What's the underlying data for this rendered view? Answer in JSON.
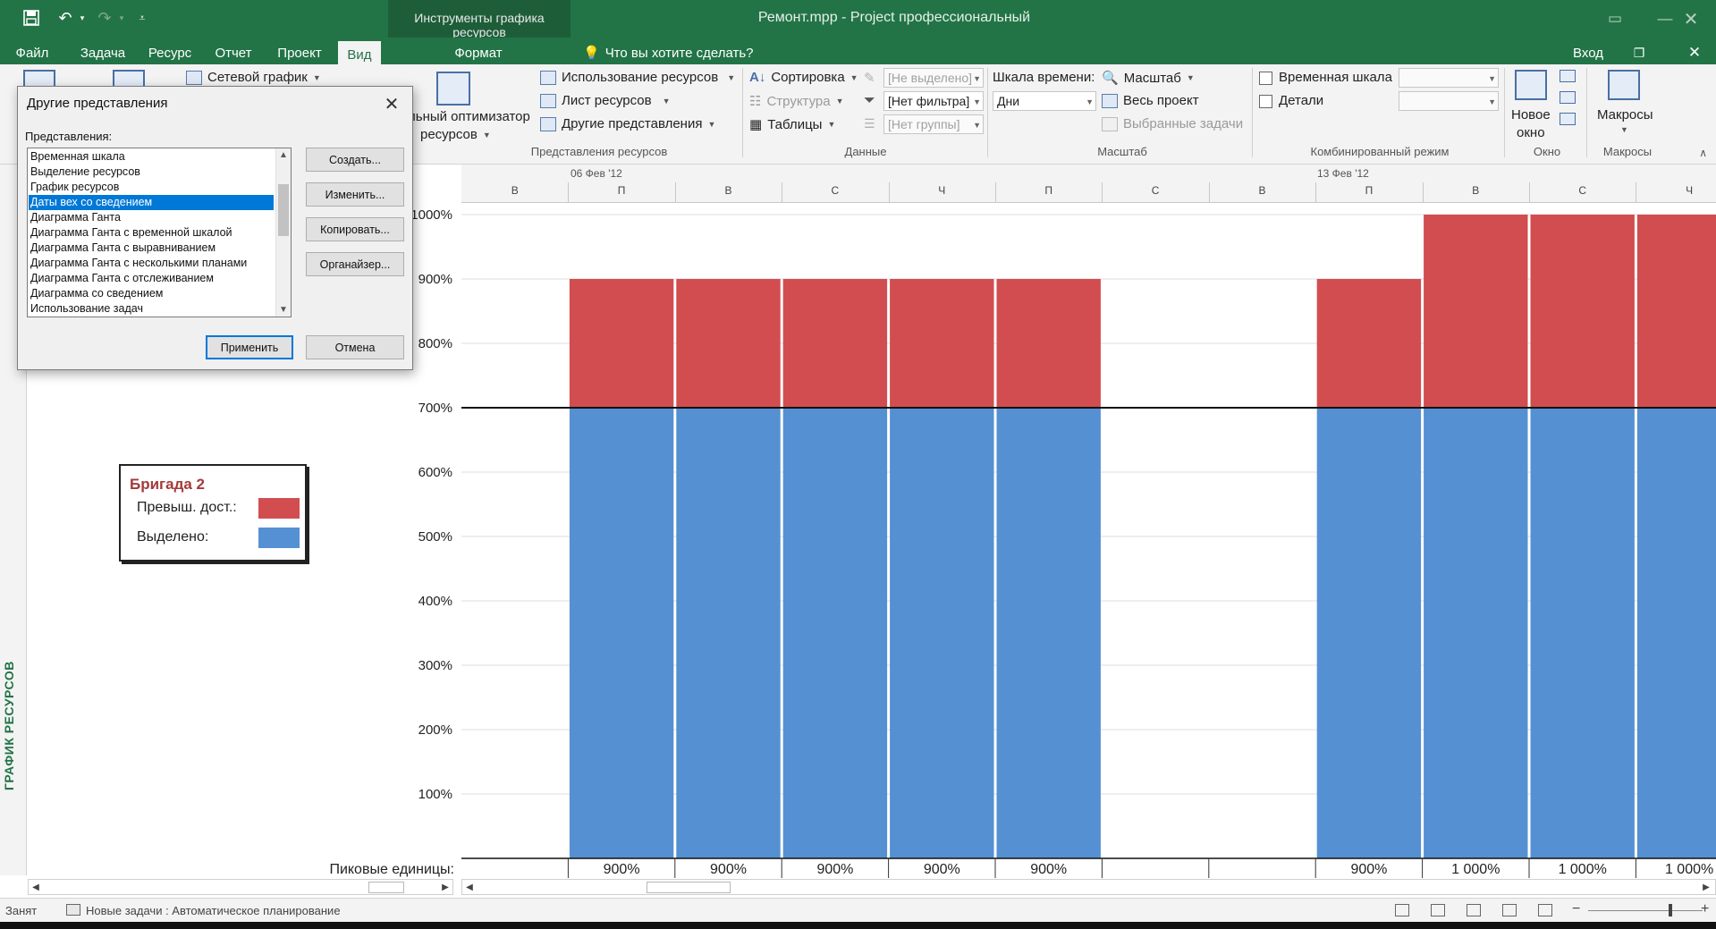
{
  "app": {
    "document_title": "Ремонт.mpp - Project профессиональный",
    "contextual_group": "Инструменты графика ресурсов",
    "sign_in": "Вход"
  },
  "tabs": [
    "Файл",
    "Задача",
    "Ресурс",
    "Отчет",
    "Проект",
    "Вид",
    "Формат"
  ],
  "active_tab": "Вид",
  "tell_me": "Что вы хотите сделать?",
  "ribbon": {
    "network_graph": "Сетевой график",
    "optimizer_line1": "льный оптимизатор",
    "optimizer_line2": "ресурсов",
    "resource_usage": "Использование ресурсов",
    "resource_sheet": "Лист ресурсов",
    "other_views": "Другие представления",
    "group_resource_views": "Представления ресурсов",
    "sort": "Сортировка",
    "outline": "Структура",
    "tables": "Таблицы",
    "highlight_value": "[Не выделено]",
    "filter_value": "[Нет фильтра]",
    "group_value": "[Нет группы]",
    "group_data": "Данные",
    "timescale_label": "Шкала времени:",
    "timescale_value": "Дни",
    "zoom": "Масштаб",
    "entire_project": "Весь проект",
    "selected_tasks": "Выбранные задачи",
    "group_zoom": "Масштаб",
    "timeline_check": "Временная шкала",
    "details_check": "Детали",
    "group_split": "Комбинированный режим",
    "new_window_line1": "Новое",
    "new_window_line2": "окно",
    "group_window": "Окно",
    "macros": "Макросы",
    "group_macros": "Макросы"
  },
  "sidebar_label": "ГРАФИК РЕСУРСОВ",
  "timescale": {
    "weeks": [
      "06 Фев '12",
      "13 Фев '12"
    ],
    "days": [
      "В",
      "П",
      "В",
      "С",
      "Ч",
      "П",
      "С",
      "В",
      "П",
      "В",
      "С",
      "Ч"
    ]
  },
  "legend": {
    "title": "Бригада 2",
    "overallocated_label": "Превыш. дост.:",
    "allocated_label": "Выделено:"
  },
  "peak_units_label": "Пиковые единицы:",
  "colors": {
    "overallocated": "#d24d4f",
    "allocated": "#5590d3",
    "brand": "#227447"
  },
  "chart_data": {
    "type": "bar",
    "stacked": true,
    "categories": [
      "В",
      "П",
      "В",
      "С",
      "Ч",
      "П",
      "С",
      "В",
      "П",
      "В",
      "С",
      "Ч"
    ],
    "series": [
      {
        "name": "Выделено",
        "values": [
          0,
          700,
          700,
          700,
          700,
          700,
          0,
          0,
          700,
          700,
          700,
          700
        ]
      },
      {
        "name": "Превыш. дост.",
        "values": [
          0,
          200,
          200,
          200,
          200,
          200,
          0,
          0,
          200,
          300,
          300,
          300
        ]
      }
    ],
    "availability_line": 700,
    "ylim": [
      0,
      1000
    ],
    "yticks": [
      "100%",
      "200%",
      "300%",
      "400%",
      "500%",
      "600%",
      "700%",
      "800%",
      "900%",
      "1000%"
    ],
    "peak_units": [
      "",
      "900%",
      "900%",
      "900%",
      "900%",
      "900%",
      "",
      "",
      "900%",
      "1 000%",
      "1 000%",
      "1 000%"
    ]
  },
  "dialog": {
    "title": "Другие представления",
    "list_label": "Представления:",
    "items": [
      "Временная шкала",
      "Выделение ресурсов",
      "График ресурсов",
      "Даты вех со сведением",
      "Диаграмма Ганта",
      "Диаграмма Ганта с временной шкалой",
      "Диаграмма Ганта с выравниванием",
      "Диаграмма Ганта с несколькими планами",
      "Диаграмма Ганта с отслеживанием",
      "Диаграмма со сведением",
      "Использование задач"
    ],
    "selected_index": 3,
    "btn_new": "Создать...",
    "btn_edit": "Изменить...",
    "btn_copy": "Копировать...",
    "btn_organizer": "Органайзер...",
    "btn_apply": "Применить",
    "btn_cancel": "Отмена"
  },
  "status": {
    "mode": "Занят",
    "new_tasks": "Новые задачи : Автоматическое планирование"
  }
}
